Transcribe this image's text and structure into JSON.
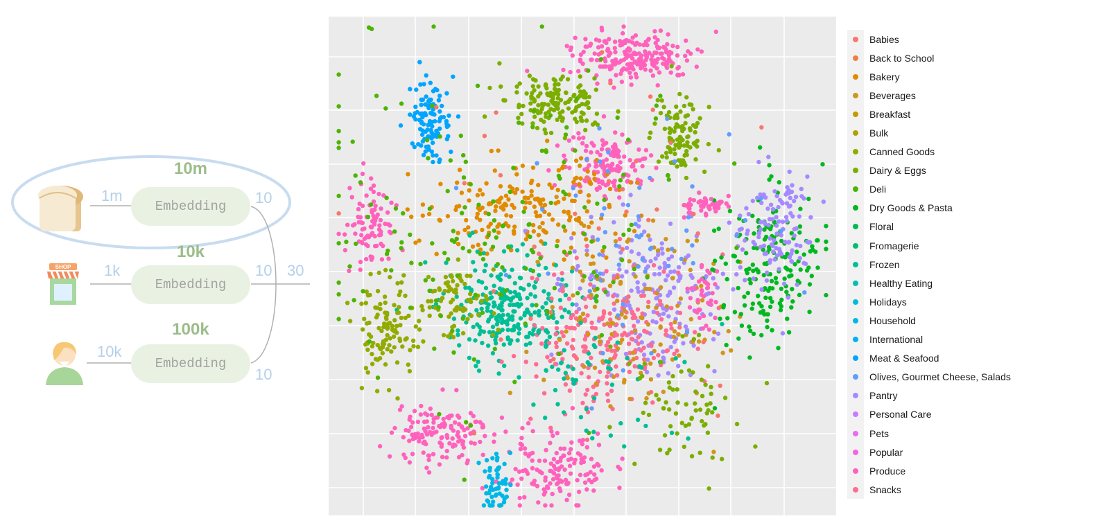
{
  "diagram": {
    "rows": [
      {
        "icon": "bread-icon",
        "size": "10m",
        "input_dim": "1m",
        "box_label": "Embedding",
        "output_dim": "10",
        "highlighted": true
      },
      {
        "icon": "shop-icon",
        "size": "10k",
        "input_dim": "1k",
        "box_label": "Embedding",
        "output_dim": "10",
        "highlighted": false
      },
      {
        "icon": "person-icon",
        "size": "100k",
        "input_dim": "10k",
        "box_label": "Embedding",
        "output_dim": "10",
        "highlighted": false
      }
    ],
    "concat_dim": "30",
    "shop_sign": "SHOP",
    "colors": {
      "box": "#e9f2e2",
      "size_label": "#9cbd8a",
      "dim_label": "#b4d0ea",
      "highlight": "#c8dcf0"
    }
  },
  "chart_data": {
    "type": "scatter",
    "title": "",
    "xlabel": "",
    "ylabel": "",
    "grid": true,
    "legend_position": "right",
    "series": [
      {
        "name": "Babies",
        "color": "#F8766D"
      },
      {
        "name": "Back to School",
        "color": "#EE8044"
      },
      {
        "name": "Bakery",
        "color": "#E08B00"
      },
      {
        "name": "Beverages",
        "color": "#D0951C"
      },
      {
        "name": "Breakfast",
        "color": "#C49A00"
      },
      {
        "name": "Bulk",
        "color": "#ADA200"
      },
      {
        "name": "Canned Goods",
        "color": "#93AA00"
      },
      {
        "name": "Dairy & Eggs",
        "color": "#7CAE00"
      },
      {
        "name": "Deli",
        "color": "#4DB400"
      },
      {
        "name": "Dry Goods & Pasta",
        "color": "#00B81F"
      },
      {
        "name": "Floral",
        "color": "#00BA4F"
      },
      {
        "name": "Fromagerie",
        "color": "#00BE70"
      },
      {
        "name": "Frozen",
        "color": "#00BF96"
      },
      {
        "name": "Healthy Eating",
        "color": "#00C0AF"
      },
      {
        "name": "Holidays",
        "color": "#00BCD8"
      },
      {
        "name": "Household",
        "color": "#00B8E7"
      },
      {
        "name": "International",
        "color": "#00B0F6"
      },
      {
        "name": "Meat & Seafood",
        "color": "#00A5FF"
      },
      {
        "name": "Olives, Gourmet Cheese, Salads",
        "color": "#619CFF"
      },
      {
        "name": "Pantry",
        "color": "#A58AFF"
      },
      {
        "name": "Personal Care",
        "color": "#C77CFF"
      },
      {
        "name": "Pets",
        "color": "#E76BF3"
      },
      {
        "name": "Popular",
        "color": "#F564E3"
      },
      {
        "name": "Produce",
        "color": "#FF62BC"
      },
      {
        "name": "Snacks",
        "color": "#FF6C91"
      }
    ],
    "clusters": [
      {
        "series": "Produce",
        "cx": 0.6,
        "cy": 0.08,
        "sx": 0.06,
        "sy": 0.025,
        "n": 220
      },
      {
        "series": "Meat & Seafood",
        "cx": 0.2,
        "cy": 0.21,
        "sx": 0.02,
        "sy": 0.035,
        "n": 110
      },
      {
        "series": "Dairy & Eggs",
        "cx": 0.45,
        "cy": 0.17,
        "sx": 0.05,
        "sy": 0.03,
        "n": 150
      },
      {
        "series": "Dairy & Eggs",
        "cx": 0.69,
        "cy": 0.24,
        "sx": 0.025,
        "sy": 0.035,
        "n": 110
      },
      {
        "series": "Produce",
        "cx": 0.55,
        "cy": 0.3,
        "sx": 0.04,
        "sy": 0.035,
        "n": 150
      },
      {
        "series": "Bakery",
        "cx": 0.38,
        "cy": 0.38,
        "sx": 0.1,
        "sy": 0.05,
        "n": 200
      },
      {
        "series": "Produce",
        "cx": 0.08,
        "cy": 0.42,
        "sx": 0.025,
        "sy": 0.04,
        "n": 90
      },
      {
        "series": "Frozen",
        "cx": 0.36,
        "cy": 0.58,
        "sx": 0.06,
        "sy": 0.05,
        "n": 260
      },
      {
        "series": "Canned Goods",
        "cx": 0.11,
        "cy": 0.62,
        "sx": 0.03,
        "sy": 0.05,
        "n": 110
      },
      {
        "series": "Canned Goods",
        "cx": 0.25,
        "cy": 0.58,
        "sx": 0.04,
        "sy": 0.04,
        "n": 80
      },
      {
        "series": "Pantry",
        "cx": 0.62,
        "cy": 0.55,
        "sx": 0.07,
        "sy": 0.08,
        "n": 200
      },
      {
        "series": "Snacks",
        "cx": 0.55,
        "cy": 0.65,
        "sx": 0.08,
        "sy": 0.08,
        "n": 230
      },
      {
        "series": "Beverages",
        "cx": 0.6,
        "cy": 0.6,
        "sx": 0.1,
        "sy": 0.1,
        "n": 130
      },
      {
        "series": "Dry Goods & Pasta",
        "cx": 0.86,
        "cy": 0.5,
        "sx": 0.05,
        "sy": 0.08,
        "n": 180
      },
      {
        "series": "Pantry",
        "cx": 0.88,
        "cy": 0.42,
        "sx": 0.04,
        "sy": 0.06,
        "n": 120
      },
      {
        "series": "Produce",
        "cx": 0.74,
        "cy": 0.38,
        "sx": 0.02,
        "sy": 0.012,
        "n": 45
      },
      {
        "series": "Produce",
        "cx": 0.74,
        "cy": 0.56,
        "sx": 0.015,
        "sy": 0.03,
        "n": 40
      },
      {
        "series": "Produce",
        "cx": 0.22,
        "cy": 0.84,
        "sx": 0.05,
        "sy": 0.03,
        "n": 140
      },
      {
        "series": "Produce",
        "cx": 0.45,
        "cy": 0.91,
        "sx": 0.05,
        "sy": 0.04,
        "n": 140
      },
      {
        "series": "Household",
        "cx": 0.33,
        "cy": 0.93,
        "sx": 0.012,
        "sy": 0.04,
        "n": 60
      },
      {
        "series": "Deli",
        "cx": 0.35,
        "cy": 0.4,
        "sx": 0.2,
        "sy": 0.16,
        "n": 180
      },
      {
        "series": "Babies",
        "cx": 0.5,
        "cy": 0.45,
        "sx": 0.2,
        "sy": 0.18,
        "n": 40
      },
      {
        "series": "Olives, Gourmet Cheese, Salads",
        "cx": 0.58,
        "cy": 0.48,
        "sx": 0.12,
        "sy": 0.12,
        "n": 60
      },
      {
        "series": "Frozen",
        "cx": 0.52,
        "cy": 0.72,
        "sx": 0.08,
        "sy": 0.06,
        "n": 60
      },
      {
        "series": "Dairy & Eggs",
        "cx": 0.7,
        "cy": 0.78,
        "sx": 0.06,
        "sy": 0.06,
        "n": 70
      }
    ]
  }
}
